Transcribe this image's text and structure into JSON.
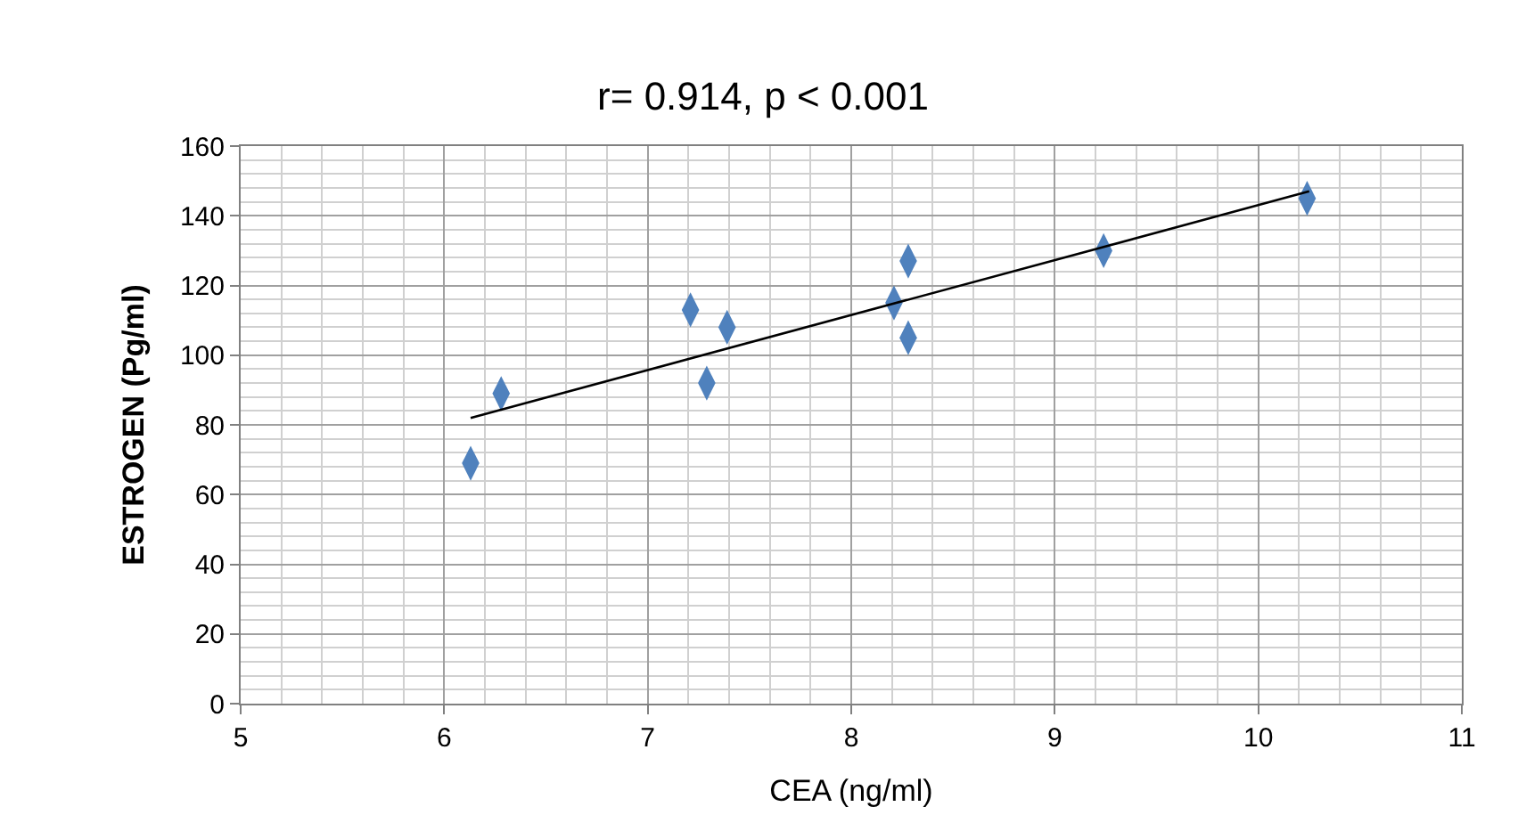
{
  "chart_data": {
    "type": "scatter",
    "title": "r= 0.914, p < 0.001",
    "xlabel": "CEA (ng/ml)",
    "ylabel": "ESTROGEN (Pg/ml)",
    "x": [
      6.13,
      6.28,
      7.21,
      7.29,
      7.39,
      8.21,
      8.28,
      8.28,
      9.24,
      10.24
    ],
    "series": [
      {
        "color": "#4f81bd",
        "values": [
          69,
          89,
          113,
          92,
          108,
          115,
          127,
          105,
          130,
          145
        ],
        "marker": "diamond"
      },
      {
        "type": "line",
        "color": "#000000",
        "x": [
          6.13,
          10.25
        ],
        "values": [
          82,
          147
        ],
        "marker": "none"
      }
    ],
    "xlim": [
      5,
      11
    ],
    "xticks": [
      5,
      6,
      7,
      8,
      9,
      10,
      11
    ],
    "ylim": [
      0,
      160
    ],
    "yticks": [
      0,
      20,
      40,
      60,
      80,
      100,
      120,
      140,
      160
    ],
    "grid": true,
    "legend": false
  }
}
